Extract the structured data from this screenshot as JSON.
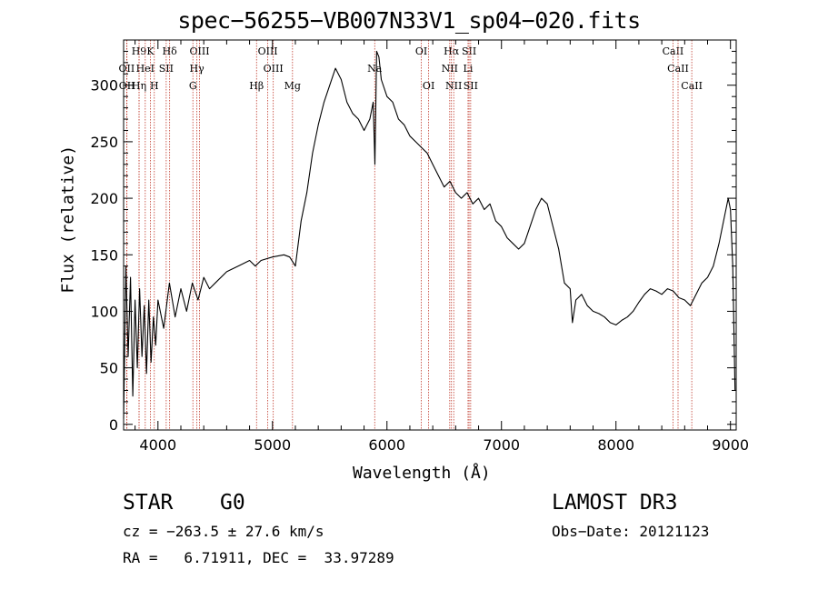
{
  "chart_data": {
    "type": "line",
    "title": "spec−56255−VB007N33V1_sp04−020.fits",
    "xlabel": "Wavelength (Å)",
    "ylabel": "Flux (relative)",
    "xlim": [
      3700,
      9050
    ],
    "ylim": [
      -5,
      340
    ],
    "xticks": [
      4000,
      5000,
      6000,
      7000,
      8000,
      9000
    ],
    "yticks": [
      0,
      50,
      100,
      150,
      200,
      250,
      300
    ],
    "series": [
      {
        "name": "flux",
        "x": [
          3700,
          3720,
          3740,
          3760,
          3780,
          3800,
          3820,
          3840,
          3860,
          3880,
          3900,
          3920,
          3940,
          3960,
          3980,
          4000,
          4050,
          4100,
          4150,
          4200,
          4250,
          4300,
          4350,
          4400,
          4450,
          4500,
          4600,
          4700,
          4800,
          4850,
          4900,
          5000,
          5100,
          5150,
          5200,
          5250,
          5300,
          5350,
          5400,
          5450,
          5500,
          5550,
          5600,
          5650,
          5700,
          5750,
          5800,
          5850,
          5880,
          5895,
          5910,
          5930,
          5950,
          6000,
          6050,
          6100,
          6150,
          6200,
          6250,
          6300,
          6350,
          6400,
          6450,
          6500,
          6550,
          6600,
          6650,
          6700,
          6750,
          6800,
          6850,
          6900,
          6950,
          7000,
          7050,
          7100,
          7150,
          7200,
          7250,
          7300,
          7350,
          7400,
          7450,
          7500,
          7550,
          7600,
          7620,
          7650,
          7700,
          7750,
          7800,
          7850,
          7900,
          7950,
          8000,
          8050,
          8100,
          8150,
          8200,
          8250,
          8300,
          8350,
          8400,
          8450,
          8500,
          8550,
          8600,
          8650,
          8700,
          8750,
          8800,
          8850,
          8900,
          8950,
          8980,
          9000,
          9020,
          9040
        ],
        "values": [
          5,
          140,
          60,
          130,
          25,
          110,
          50,
          120,
          60,
          105,
          45,
          110,
          55,
          95,
          70,
          110,
          85,
          125,
          95,
          120,
          100,
          125,
          110,
          130,
          120,
          125,
          135,
          140,
          145,
          140,
          145,
          148,
          150,
          148,
          140,
          180,
          205,
          240,
          265,
          285,
          300,
          315,
          305,
          285,
          275,
          270,
          260,
          270,
          285,
          230,
          330,
          325,
          305,
          290,
          285,
          270,
          265,
          255,
          250,
          245,
          240,
          230,
          220,
          210,
          215,
          205,
          200,
          205,
          195,
          200,
          190,
          195,
          180,
          175,
          165,
          160,
          155,
          160,
          175,
          190,
          200,
          195,
          175,
          155,
          125,
          120,
          90,
          110,
          115,
          105,
          100,
          98,
          95,
          90,
          88,
          92,
          95,
          100,
          108,
          115,
          120,
          118,
          115,
          120,
          118,
          112,
          110,
          105,
          115,
          125,
          130,
          140,
          160,
          185,
          200,
          190,
          140,
          30
        ]
      }
    ],
    "line_marks": [
      {
        "label": "H9",
        "x": 3835,
        "row": 1
      },
      {
        "label": "K",
        "x": 3934,
        "row": 1
      },
      {
        "label": "Hδ",
        "x": 4102,
        "row": 1
      },
      {
        "label": "OIII",
        "x": 4363,
        "row": 1
      },
      {
        "label": "OIII",
        "x": 4959,
        "row": 1
      },
      {
        "label": "OI",
        "x": 6300,
        "row": 1
      },
      {
        "label": "Hα",
        "x": 6563,
        "row": 1
      },
      {
        "label": "SII",
        "x": 6717,
        "row": 1
      },
      {
        "label": "CaII",
        "x": 8498,
        "row": 1
      },
      {
        "label": "OII",
        "x": 3727,
        "row": 2
      },
      {
        "label": "HeI",
        "x": 3889,
        "row": 2
      },
      {
        "label": "SII",
        "x": 4072,
        "row": 2
      },
      {
        "label": "Hγ",
        "x": 4340,
        "row": 2
      },
      {
        "label": "OIII",
        "x": 5007,
        "row": 2
      },
      {
        "label": "Na",
        "x": 5893,
        "row": 2
      },
      {
        "label": "NII",
        "x": 6548,
        "row": 2
      },
      {
        "label": "Li",
        "x": 6708,
        "row": 2
      },
      {
        "label": "CaII",
        "x": 8542,
        "row": 2
      },
      {
        "label": "OII",
        "x": 3729,
        "row": 3
      },
      {
        "label": "Hη",
        "x": 3835,
        "row": 3
      },
      {
        "label": "H",
        "x": 3968,
        "row": 3
      },
      {
        "label": "G",
        "x": 4305,
        "row": 3
      },
      {
        "label": "Hβ",
        "x": 4861,
        "row": 3
      },
      {
        "label": "Mg",
        "x": 5175,
        "row": 3
      },
      {
        "label": "OI",
        "x": 6364,
        "row": 3
      },
      {
        "label": "NII",
        "x": 6583,
        "row": 3
      },
      {
        "label": "SII",
        "x": 6731,
        "row": 3
      },
      {
        "label": "CaII",
        "x": 8662,
        "row": 3
      }
    ]
  },
  "info": {
    "class_label": "STAR",
    "subclass": "G0",
    "survey": "LAMOST DR3",
    "redshift": "cz = −263.5 ± 27.6 km/s",
    "obs_date": "Obs−Date: 20121123",
    "coords": "RA =   6.71911, DEC =  33.97289"
  },
  "colors": {
    "line_mark": "#c0392b",
    "spectrum": "#000000",
    "axes": "#000000"
  }
}
